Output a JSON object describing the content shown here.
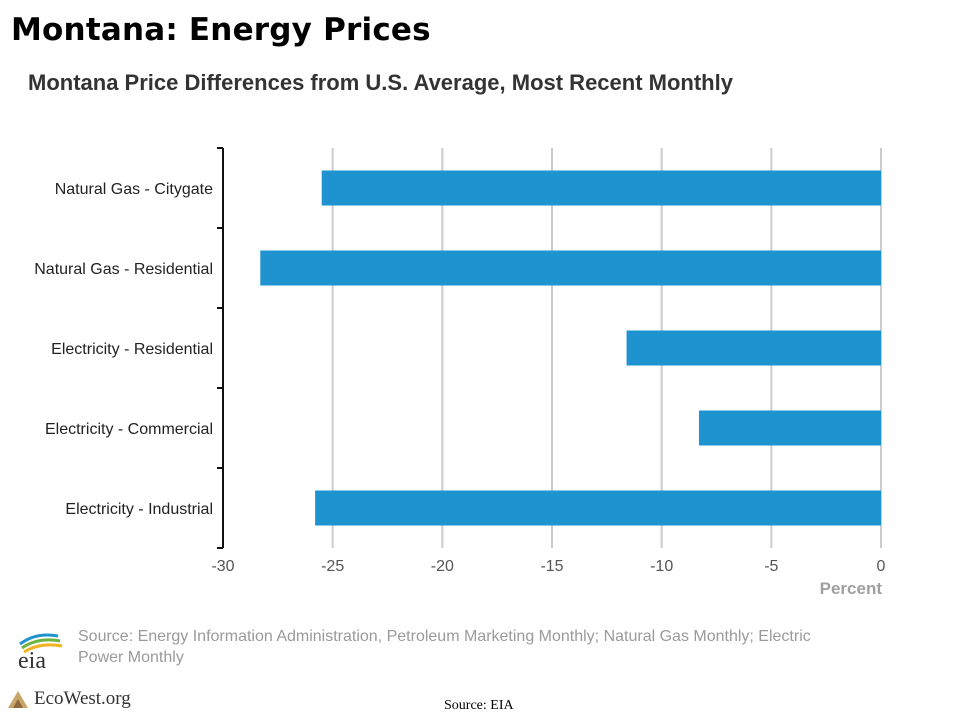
{
  "slide": {
    "title": "Montana: Energy Prices",
    "footer_source": "Source: EIA",
    "brand": "EcoWest.org",
    "eia_logo_text": "eia"
  },
  "chart_data": {
    "type": "bar",
    "orientation": "horizontal",
    "title": "Montana Price Differences from U.S. Average, Most Recent Monthly",
    "xlabel": "Percent",
    "ylabel": "",
    "categories": [
      "Natural Gas - Citygate",
      "Natural Gas - Residential",
      "Electricity - Residential",
      "Electricity - Commercial",
      "Electricity - Industrial"
    ],
    "values": [
      -25.5,
      -28.3,
      -11.6,
      -8.3,
      -25.8
    ],
    "xlim": [
      -30,
      0
    ],
    "xticks": [
      -30,
      -25,
      -20,
      -15,
      -10,
      -5,
      0
    ],
    "grid": true,
    "bar_color": "#1f93d0",
    "source": "Source: Energy Information Administration, Petroleum Marketing Monthly; Natural Gas Monthly; Electric Power Monthly"
  }
}
